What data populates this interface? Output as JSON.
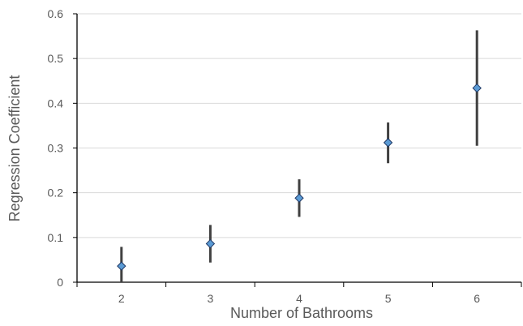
{
  "chart_data": {
    "type": "scatter",
    "title": "",
    "xlabel": "Number of Bathrooms",
    "ylabel": "Regression Coefficient",
    "xlim": [
      1.5,
      6.5
    ],
    "ylim": [
      0,
      0.6
    ],
    "x_ticks": [
      "2",
      "3",
      "4",
      "5",
      "6"
    ],
    "y_ticks": [
      "0",
      "0.1",
      "0.2",
      "0.3",
      "0.4",
      "0.5",
      "0.6"
    ],
    "grid": "horizontal",
    "legend": "none",
    "points": [
      {
        "x": 2,
        "y": 0.036,
        "low": 0.0,
        "high": 0.079
      },
      {
        "x": 3,
        "y": 0.086,
        "low": 0.044,
        "high": 0.128
      },
      {
        "x": 4,
        "y": 0.188,
        "low": 0.146,
        "high": 0.23
      },
      {
        "x": 5,
        "y": 0.312,
        "low": 0.266,
        "high": 0.357
      },
      {
        "x": 6,
        "y": 0.434,
        "low": 0.305,
        "high": 0.563
      }
    ],
    "colors": {
      "marker_fill": "#5b9bd5",
      "marker_stroke": "#1f3864",
      "error_bar": "#404040",
      "grid": "#d9d9d9",
      "axis": "#000000"
    }
  }
}
